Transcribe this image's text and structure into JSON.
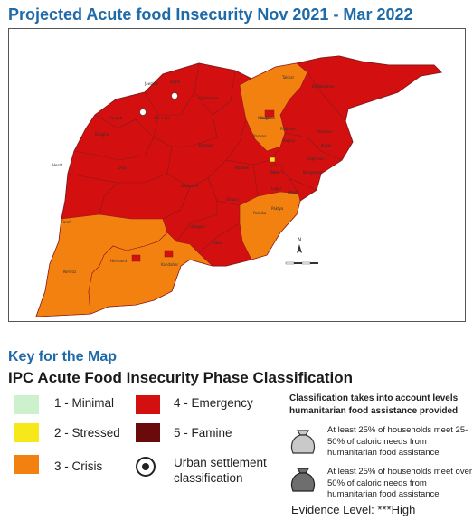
{
  "title": "Projected Acute food Insecurity Nov 2021 - Mar 2022",
  "key": {
    "title": "Key for the Map",
    "classification_title": "IPC Acute Food Insecurity Phase Classification",
    "phases": [
      {
        "label": "1 - Minimal",
        "color": "#cdf0cd"
      },
      {
        "label": "2 - Stressed",
        "color": "#f7e81c"
      },
      {
        "label": "3 - Crisis",
        "color": "#f28110"
      },
      {
        "label": "4 - Emergency",
        "color": "#d40f0f"
      },
      {
        "label": "5 - Famine",
        "color": "#6b0a0a"
      }
    ],
    "urban_label": "Urban settlement classification",
    "note": "Classification takes into account levels humanitarian food assistance provided",
    "bags": [
      {
        "text": "At least 25% of households meet 25-50% of caloric needs from humanitarian food assistance",
        "color": "#c9c9c9"
      },
      {
        "text": "At least 25% of households meet over 50% of caloric needs from humanitarian food assistance",
        "color": "#6e6e6e"
      }
    ],
    "evidence": "Evidence Level: ***High"
  },
  "map": {
    "province_labels": [
      "Herat",
      "Farah",
      "Nimroz",
      "Kandahar",
      "Helmand",
      "Badghis",
      "Ghor",
      "Faryab",
      "Jawzjan",
      "Balkh",
      "Samangan",
      "Kunduz",
      "Takhar",
      "Badakhshan",
      "Baghlan",
      "Bamyan",
      "Daykundi",
      "Uruzgan",
      "Zabul",
      "Paktika",
      "Ghazni",
      "Wardak",
      "Kabul",
      "Logar",
      "Paktya",
      "Khost",
      "Nangarhar",
      "Kunar",
      "Nuristan",
      "Laghman",
      "Kapisa",
      "Parwan",
      "Panjsher",
      "Sar-e-Pul"
    ],
    "colors": {
      "emergency": "#d40f0f",
      "crisis": "#f28110",
      "stressed": "#f7e81c",
      "boundary": "#8a1a1a",
      "urban": "#ffffff"
    }
  }
}
